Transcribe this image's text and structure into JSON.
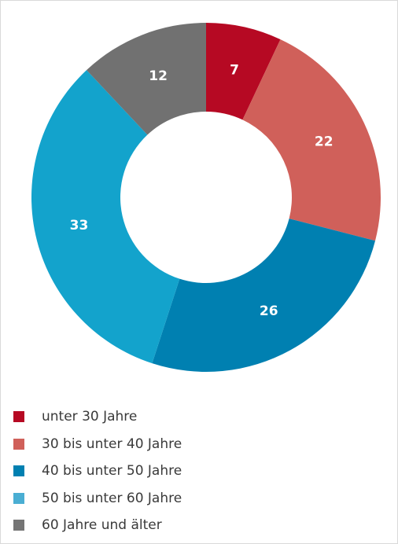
{
  "chart_data": {
    "type": "pie",
    "categories": [
      "unter 30 Jahre",
      "30 bis unter 40 Jahre",
      "40 bis unter 50 Jahre",
      "50 bis unter 60 Jahre",
      "60 Jahre und älter"
    ],
    "values": [
      7,
      22,
      26,
      33,
      12
    ],
    "colors": [
      "#b60923",
      "#d0605a",
      "#0080b1",
      "#13a3cc",
      "#717171"
    ],
    "legend_colors": [
      "#b60923",
      "#d0605a",
      "#0080b1",
      "#4aaed3",
      "#757575"
    ],
    "data_labels": [
      "7",
      "22",
      "26",
      "33",
      "12"
    ],
    "donut": true,
    "legend_position": "bottom"
  }
}
